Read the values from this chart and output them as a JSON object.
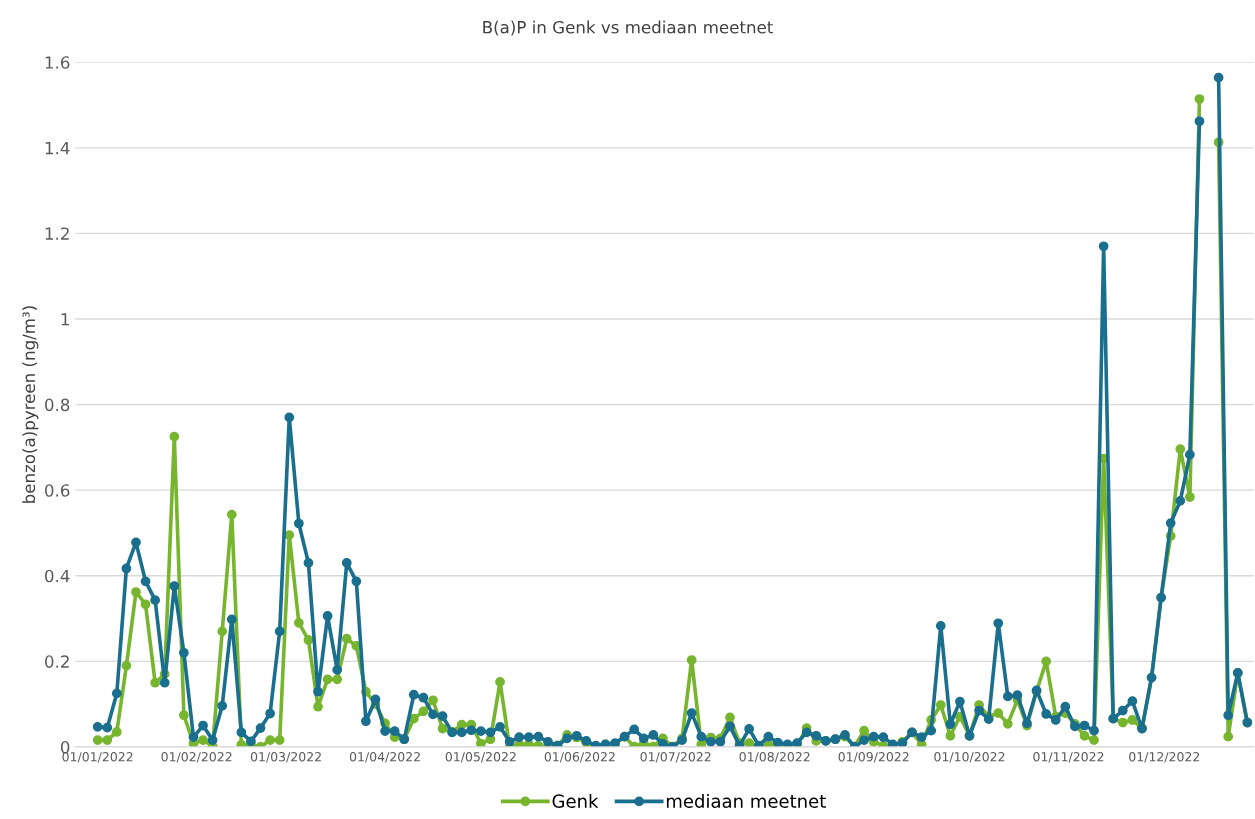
{
  "chart_data": {
    "type": "line",
    "title": "B(a)P in Genk vs mediaan meetnet",
    "ylabel": "benzo(a)pyreen (ng/m³)",
    "x": [
      "2022-01-01",
      "2022-01-04",
      "2022-01-07",
      "2022-01-10",
      "2022-01-13",
      "2022-01-16",
      "2022-01-19",
      "2022-01-22",
      "2022-01-25",
      "2022-01-28",
      "2022-01-31",
      "2022-02-03",
      "2022-02-06",
      "2022-02-09",
      "2022-02-12",
      "2022-02-15",
      "2022-02-18",
      "2022-02-21",
      "2022-02-24",
      "2022-02-27",
      "2022-03-02",
      "2022-03-05",
      "2022-03-08",
      "2022-03-11",
      "2022-03-14",
      "2022-03-17",
      "2022-03-20",
      "2022-03-23",
      "2022-03-26",
      "2022-03-29",
      "2022-04-01",
      "2022-04-04",
      "2022-04-07",
      "2022-04-10",
      "2022-04-13",
      "2022-04-16",
      "2022-04-19",
      "2022-04-22",
      "2022-04-25",
      "2022-04-28",
      "2022-05-01",
      "2022-05-04",
      "2022-05-07",
      "2022-05-10",
      "2022-05-13",
      "2022-05-16",
      "2022-05-19",
      "2022-05-22",
      "2022-05-25",
      "2022-05-28",
      "2022-05-31",
      "2022-06-03",
      "2022-06-06",
      "2022-06-09",
      "2022-06-12",
      "2022-06-15",
      "2022-06-18",
      "2022-06-21",
      "2022-06-24",
      "2022-06-27",
      "2022-06-30",
      "2022-07-03",
      "2022-07-06",
      "2022-07-09",
      "2022-07-12",
      "2022-07-15",
      "2022-07-18",
      "2022-07-21",
      "2022-07-24",
      "2022-07-27",
      "2022-07-30",
      "2022-08-02",
      "2022-08-05",
      "2022-08-08",
      "2022-08-11",
      "2022-08-14",
      "2022-08-17",
      "2022-08-20",
      "2022-08-23",
      "2022-08-26",
      "2022-08-29",
      "2022-09-01",
      "2022-09-04",
      "2022-09-07",
      "2022-09-10",
      "2022-09-13",
      "2022-09-16",
      "2022-09-19",
      "2022-09-22",
      "2022-09-25",
      "2022-09-28",
      "2022-10-01",
      "2022-10-04",
      "2022-10-07",
      "2022-10-10",
      "2022-10-13",
      "2022-10-16",
      "2022-10-19",
      "2022-10-22",
      "2022-10-25",
      "2022-10-28",
      "2022-10-31",
      "2022-11-03",
      "2022-11-06",
      "2022-11-09",
      "2022-11-12",
      "2022-11-15",
      "2022-11-18",
      "2022-11-21",
      "2022-11-24",
      "2022-11-27",
      "2022-11-30",
      "2022-12-03",
      "2022-12-06",
      "2022-12-09",
      "2022-12-12",
      "2022-12-15",
      "2022-12-18",
      "2022-12-21",
      "2022-12-24",
      "2022-12-27"
    ],
    "series": [
      {
        "name": "Genk",
        "color": "#77b52f",
        "values": [
          0.016,
          0.016,
          0.035,
          0.19,
          0.362,
          0.333,
          0.15,
          0.17,
          0.725,
          0.074,
          0.008,
          0.016,
          0.002,
          0.27,
          0.543,
          0.005,
          0.005,
          0,
          0.016,
          0.016,
          0.495,
          0.29,
          0.25,
          0.094,
          0.158,
          0.158,
          0.253,
          0.236,
          0.129,
          0.1,
          0.055,
          0.023,
          0.018,
          0.066,
          0.083,
          0.109,
          0.043,
          0.035,
          0.052,
          0.052,
          0.008,
          0.018,
          0.152,
          0,
          0.006,
          0.006,
          0.003,
          0,
          0.003,
          0.028,
          0.022,
          0.01,
          0,
          0.006,
          0.006,
          0.024,
          0.001,
          0.009,
          0.001,
          0.02,
          0.001,
          0.02,
          0.203,
          0.006,
          0.022,
          0.02,
          0.069,
          0.009,
          0.009,
          0,
          0.006,
          0.003,
          0,
          0.003,
          0.044,
          0.014,
          0.014,
          0.018,
          0.024,
          0.001,
          0.038,
          0.012,
          0.003,
          0.003,
          0.012,
          0.034,
          0.006,
          0.063,
          0.098,
          0.026,
          0.071,
          0.026,
          0.098,
          0.071,
          0.079,
          0.054,
          0.11,
          0.05,
          0.13,
          0.2,
          0.071,
          0.079,
          0.054,
          0.026,
          0.016,
          0.674,
          0.066,
          0.057,
          0.063,
          0.043,
          0.162,
          0.349,
          0.493,
          0.696,
          0.584,
          1.514,
          null,
          1.413,
          0.024,
          0.173,
          0.057
        ]
      },
      {
        "name": "mediaan meetnet",
        "color": "#1a6e8e",
        "values": [
          0.047,
          0.045,
          0.125,
          0.417,
          0.478,
          0.387,
          0.343,
          0.15,
          0.376,
          0.22,
          0.023,
          0.05,
          0.016,
          0.096,
          0.298,
          0.034,
          0.013,
          0.044,
          0.078,
          0.27,
          0.77,
          0.522,
          0.43,
          0.129,
          0.306,
          0.18,
          0.43,
          0.387,
          0.06,
          0.111,
          0.037,
          0.037,
          0.018,
          0.122,
          0.115,
          0.076,
          0.072,
          0.034,
          0.034,
          0.039,
          0.037,
          0.034,
          0.047,
          0.012,
          0.023,
          0.023,
          0.024,
          0.012,
          0.003,
          0.02,
          0.026,
          0.014,
          0.003,
          0.006,
          0.009,
          0.024,
          0.041,
          0.02,
          0.028,
          0.007,
          0,
          0.016,
          0.079,
          0.024,
          0.012,
          0.012,
          0.048,
          0.003,
          0.042,
          0.003,
          0.024,
          0.01,
          0.006,
          0.009,
          0.034,
          0.026,
          0.014,
          0.018,
          0.028,
          0,
          0.016,
          0.024,
          0.023,
          0.006,
          0.009,
          0.034,
          0.023,
          0.038,
          0.283,
          0.053,
          0.106,
          0.026,
          0.085,
          0.065,
          0.289,
          0.118,
          0.121,
          0.055,
          0.132,
          0.077,
          0.063,
          0.094,
          0.048,
          0.05,
          0.038,
          1.17,
          0.066,
          0.085,
          0.107,
          0.043,
          0.162,
          0.349,
          0.523,
          0.575,
          0.683,
          1.462,
          null,
          1.564,
          0.074,
          0.173,
          0.057
        ]
      }
    ],
    "xlim": [
      "2021-12-25",
      "2022-12-29"
    ],
    "xticks": [
      {
        "value": "2022-01-01",
        "label": "01/01/2022"
      },
      {
        "value": "2022-02-01",
        "label": "01/02/2022"
      },
      {
        "value": "2022-03-01",
        "label": "01/03/2022"
      },
      {
        "value": "2022-04-01",
        "label": "01/04/2022"
      },
      {
        "value": "2022-05-01",
        "label": "01/05/2022"
      },
      {
        "value": "2022-06-01",
        "label": "01/06/2022"
      },
      {
        "value": "2022-07-01",
        "label": "01/07/2022"
      },
      {
        "value": "2022-08-01",
        "label": "01/08/2022"
      },
      {
        "value": "2022-09-01",
        "label": "01/09/2022"
      },
      {
        "value": "2022-10-01",
        "label": "01/10/2022"
      },
      {
        "value": "2022-11-01",
        "label": "01/11/2022"
      },
      {
        "value": "2022-12-01",
        "label": "01/12/2022"
      }
    ],
    "ylim": [
      0,
      1.6
    ],
    "yticks": [
      0,
      0.2,
      0.4,
      0.6,
      0.8,
      1,
      1.2,
      1.4,
      1.6
    ],
    "grid": "y",
    "legend": "bottom",
    "marker": "circle",
    "line_style": "solid"
  }
}
